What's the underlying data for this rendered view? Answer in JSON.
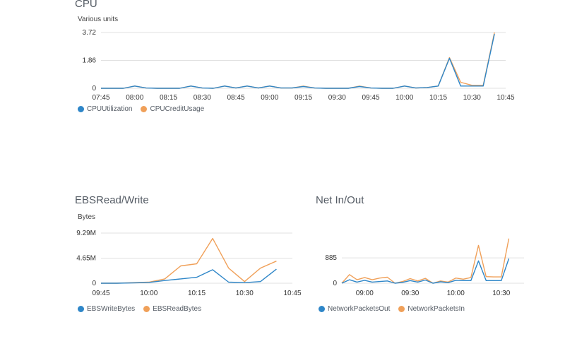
{
  "colors": {
    "blue": "#2e86c8",
    "orange": "#f0a059",
    "grid": "#e0e0e0"
  },
  "chart_data": [
    {
      "id": "cpu",
      "type": "line",
      "title": "CPU",
      "ylabel": "Various units",
      "yticks": [
        "3.72",
        "1.86",
        "0"
      ],
      "ytick_values": [
        3.72,
        1.86,
        0
      ],
      "xticks": [
        "07:45",
        "08:00",
        "08:15",
        "08:30",
        "08:45",
        "09:00",
        "09:15",
        "09:30",
        "09:45",
        "10:00",
        "10:15",
        "10:30",
        "10:45"
      ],
      "xlim": [
        "07:45",
        "10:45"
      ],
      "ylim": [
        0,
        3.72
      ],
      "x": [
        "07:45",
        "07:50",
        "07:55",
        "08:00",
        "08:05",
        "08:10",
        "08:15",
        "08:20",
        "08:25",
        "08:30",
        "08:35",
        "08:40",
        "08:45",
        "08:50",
        "08:55",
        "09:00",
        "09:05",
        "09:10",
        "09:15",
        "09:20",
        "09:25",
        "09:30",
        "09:35",
        "09:40",
        "09:45",
        "09:50",
        "09:55",
        "10:00",
        "10:05",
        "10:10",
        "10:15",
        "10:20",
        "10:25",
        "10:30",
        "10:35",
        "10:40",
        "10:45"
      ],
      "series": [
        {
          "name": "CPUUtilization",
          "color": "#2e86c8",
          "values": [
            0,
            0,
            0,
            0.15,
            0.02,
            0,
            0,
            0,
            0.15,
            0.02,
            0,
            0.15,
            0.02,
            0.15,
            0.02,
            0.15,
            0.02,
            0.02,
            0.12,
            0.02,
            0,
            0,
            0,
            0.12,
            0.02,
            0,
            0,
            0.15,
            0.02,
            0.05,
            0.15,
            2.0,
            0.15,
            0.15,
            0.15,
            3.62,
            null
          ]
        },
        {
          "name": "CPUCreditUsage",
          "color": "#f0a059",
          "values": [
            0,
            0,
            0,
            0.15,
            0.02,
            0,
            0,
            0,
            0.15,
            0.02,
            0,
            0.15,
            0.02,
            0.15,
            0.02,
            0.15,
            0.02,
            0.02,
            0.14,
            0.02,
            0,
            0,
            0,
            0.14,
            0.02,
            0,
            0,
            0.15,
            0.02,
            0.05,
            0.15,
            2.05,
            0.4,
            0.2,
            0.2,
            3.72,
            null
          ]
        }
      ]
    },
    {
      "id": "ebs",
      "type": "line",
      "title": "EBSRead/Write",
      "ylabel": "Bytes",
      "yticks": [
        "9.29M",
        "4.65M",
        "0"
      ],
      "ytick_values": [
        9.29,
        4.65,
        0
      ],
      "xticks": [
        "09:45",
        "10:00",
        "10:15",
        "10:30",
        "10:45"
      ],
      "xlim": [
        "09:45",
        "10:45"
      ],
      "ylim": [
        0,
        9.29
      ],
      "x": [
        "09:45",
        "09:50",
        "09:55",
        "10:00",
        "10:05",
        "10:10",
        "10:15",
        "10:20",
        "10:25",
        "10:30",
        "10:35",
        "10:40"
      ],
      "series": [
        {
          "name": "EBSWriteBytes",
          "color": "#2e86c8",
          "values": [
            0,
            0,
            0.05,
            0.15,
            0.5,
            0.8,
            1.1,
            2.5,
            0.2,
            0.1,
            0.3,
            2.6
          ]
        },
        {
          "name": "EBSReadBytes",
          "color": "#f0a059",
          "values": [
            0,
            0,
            0.1,
            0.2,
            0.8,
            3.2,
            3.6,
            8.3,
            2.8,
            0.3,
            2.8,
            4.1
          ]
        }
      ]
    },
    {
      "id": "net",
      "type": "line",
      "title": "Net In/Out",
      "ylabel": "",
      "yticks": [
        "885",
        "0"
      ],
      "ytick_values": [
        885,
        0
      ],
      "xticks": [
        "09:00",
        "09:30",
        "10:00",
        "10:30"
      ],
      "xlim": [
        "08:45",
        "10:45"
      ],
      "ylim": [
        0,
        1750
      ],
      "x": [
        "08:45",
        "08:50",
        "08:55",
        "09:00",
        "09:05",
        "09:10",
        "09:15",
        "09:20",
        "09:25",
        "09:30",
        "09:35",
        "09:40",
        "09:45",
        "09:50",
        "09:55",
        "10:00",
        "10:05",
        "10:10",
        "10:15",
        "10:20",
        "10:25",
        "10:30",
        "10:35",
        "10:40",
        "10:45"
      ],
      "series": [
        {
          "name": "NetworkPacketsOut",
          "color": "#2e86c8",
          "values": [
            0,
            120,
            40,
            100,
            40,
            60,
            80,
            0,
            30,
            90,
            40,
            110,
            0,
            50,
            20,
            100,
            90,
            90,
            780,
            90,
            90,
            90,
            860,
            null,
            null
          ]
        },
        {
          "name": "NetworkPacketsIn",
          "color": "#f0a059",
          "values": [
            0,
            300,
            120,
            200,
            120,
            180,
            210,
            0,
            60,
            160,
            80,
            170,
            0,
            80,
            40,
            180,
            140,
            200,
            1320,
            230,
            220,
            220,
            1560,
            null,
            null
          ]
        }
      ]
    }
  ]
}
